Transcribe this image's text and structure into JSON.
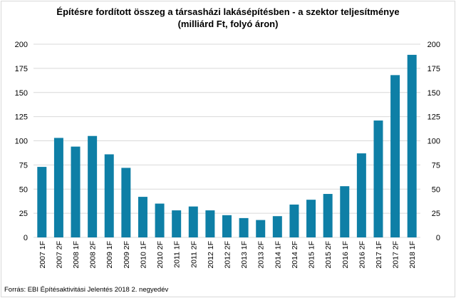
{
  "chart_data": {
    "type": "bar",
    "title_line1": "Építésre fordított összeg a társasházi  lakásépítésben  - a szektor teljesítménye",
    "title_line2": "(milliárd Ft, folyó áron)",
    "source": "Forrás: EBI Építésaktivitási Jelentés 2018 2. negyedév",
    "xlabel": "",
    "ylabel": "",
    "ylim": [
      0,
      200
    ],
    "yticks": [
      0,
      25,
      50,
      75,
      100,
      125,
      150,
      175,
      200
    ],
    "grid": true,
    "secondary_axis": true,
    "bar_color": "#0e7fa6",
    "categories": [
      "2007 1F",
      "2007 2F",
      "2008 1F",
      "2008 2F",
      "2009 1F",
      "2009 2F",
      "2010 1F",
      "2010 2F",
      "2011 1F",
      "2011 2F",
      "2012 1F",
      "2012 2F",
      "2013 1F",
      "2013 2F",
      "2014 1F",
      "2014 2F",
      "2015 1F",
      "2015 2F",
      "2016 1F",
      "2016 2F",
      "2017 1F",
      "2017 2F",
      "2018 1F"
    ],
    "values": [
      73,
      103,
      94,
      105,
      86,
      72,
      42,
      35,
      28,
      32,
      28,
      23,
      20,
      18,
      22,
      34,
      39,
      45,
      53,
      87,
      121,
      168,
      189
    ]
  }
}
